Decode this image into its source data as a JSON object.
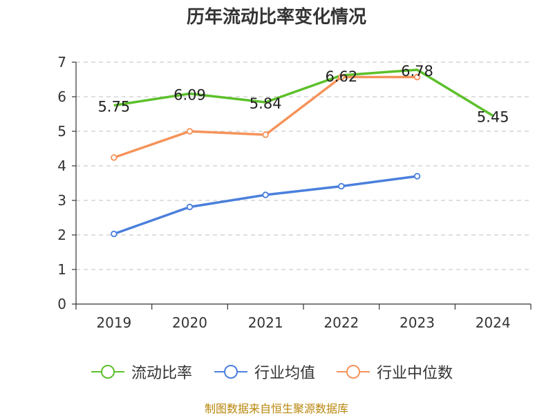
{
  "title": "历年流动比率变化情况",
  "footer": "制图数据来自恒生聚源数据库",
  "chart_data": {
    "type": "line",
    "title": "历年流动比率变化情况",
    "categories": [
      "2019",
      "2020",
      "2021",
      "2022",
      "2023",
      "2024"
    ],
    "ylim": [
      0,
      7
    ],
    "yticks": [
      0,
      1,
      2,
      3,
      4,
      5,
      6,
      7
    ],
    "grid": true,
    "legend_position": "bottom",
    "series": [
      {
        "name": "流动比率",
        "color": "#5cc02a",
        "show_labels": true,
        "values": [
          5.75,
          6.09,
          5.84,
          6.62,
          6.78,
          5.45
        ],
        "labels": [
          "5.75",
          "6.09",
          "5.84",
          "6.62",
          "6.78",
          "5.45"
        ]
      },
      {
        "name": "行业均值",
        "color": "#4a7fdc",
        "show_labels": false,
        "values": [
          2.03,
          2.81,
          3.16,
          3.41,
          3.7,
          null
        ]
      },
      {
        "name": "行业中位数",
        "color": "#f5935a",
        "show_labels": false,
        "values": [
          4.24,
          5.0,
          4.9,
          6.57,
          6.57,
          null
        ]
      }
    ]
  }
}
